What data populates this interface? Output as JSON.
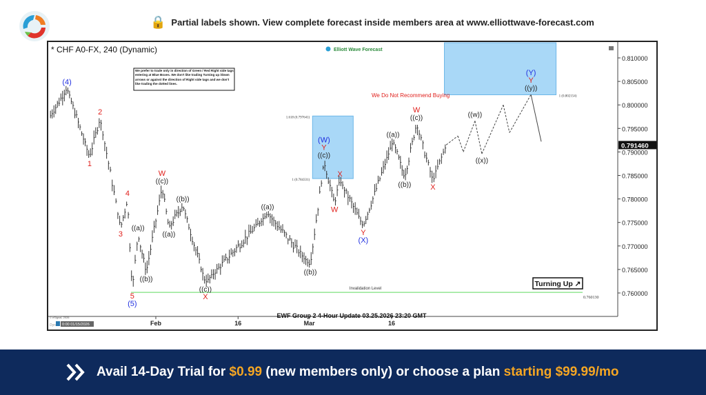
{
  "header": {
    "lock_icon": "lock-icon",
    "notice": "Partial labels shown. View complete forecast inside members area at www.elliottwave-forecast.com"
  },
  "chart_data": {
    "type": "ohlc-bar",
    "title": "* CHF A0-FX, 240 (Dynamic)",
    "brand": "Elliott Wave Forecast",
    "footer": "EWF Group 2 4-Hour Update 03.25.2026 23:20 GMT",
    "copyright": "© eSignal, 2026",
    "cursor_label": "0:00 01/15/2026",
    "dyn_label": "Dyn",
    "note": "We prefer to trade only in direction of Green / Red Right side tags entering at Blue Boxes. We don't like trading Turning up /down arrows or against the direction of Right side tags and we don't like trading the dotted lines.",
    "warning": "We Do Not Recommend Buying",
    "turning_label": "Turning Up ↗",
    "invalidation": {
      "label": "Invalidation Level",
      "price": 0.76013,
      "price_label": "0.760130",
      "color": "#7ee07e"
    },
    "current_price": "0.791460",
    "current_price_value": 0.79146,
    "ylim": [
      0.7545,
      0.8135
    ],
    "y_ticks": [
      "0.810000",
      "0.805000",
      "0.800000",
      "0.795000",
      "0.790000",
      "0.785000",
      "0.780000",
      "0.775000",
      "0.770000",
      "0.765000",
      "0.760000"
    ],
    "x_ticks": [
      {
        "label": "Feb",
        "date": "2026-02-01"
      },
      {
        "label": "16",
        "date": "2026-02-16"
      },
      {
        "label": "Mar",
        "date": "2026-03-01"
      },
      {
        "label": "16",
        "date": "2026-03-16"
      }
    ],
    "blue_boxes": [
      {
        "from": "2026-03-01T14:00Z",
        "to": "2026-03-09T00:00Z",
        "high": 0.797641,
        "low": 0.784331,
        "top_label": "1.618 (0.797641)",
        "bottom_label": "1 (0.784331)"
      },
      {
        "from": "2026-03-25T15:00Z",
        "to": "2026-04-15T00:00Z",
        "high": 0.8135,
        "low": 0.802154,
        "bottom_label": "1 (0.802154)"
      }
    ],
    "colors": {
      "blue": "#1f2fe0",
      "red": "#e0201c",
      "black": "#222222",
      "box": "#a9d8f7",
      "box_border": "#6cb6e8"
    },
    "swings": [
      {
        "t": "2026-01-12T15:00Z",
        "p": 0.7974,
        "labels": []
      },
      {
        "t": "2026-01-15T19:00Z",
        "p": 0.8035,
        "pos": "above",
        "labels": [
          {
            "text": "(4)",
            "color": "blue"
          }
        ]
      },
      {
        "t": "2026-01-19T22:00Z",
        "p": 0.7889,
        "pos": "below",
        "labels": [
          {
            "text": "1",
            "color": "red"
          }
        ]
      },
      {
        "t": "2026-01-21T20:00Z",
        "p": 0.7971,
        "pos": "above",
        "labels": [
          {
            "text": "2",
            "color": "red"
          }
        ]
      },
      {
        "t": "2026-01-25T14:00Z",
        "p": 0.7739,
        "pos": "below",
        "labels": [
          {
            "text": "3",
            "color": "red"
          }
        ]
      },
      {
        "t": "2026-01-26T20:00Z",
        "p": 0.7798,
        "pos": "above",
        "labels": [
          {
            "text": "4",
            "color": "red"
          }
        ]
      },
      {
        "t": "2026-01-27T17:00Z",
        "p": 0.7607,
        "pos": "below",
        "labels": [
          {
            "text": "5",
            "color": "red"
          },
          {
            "text": "(5)",
            "color": "blue"
          }
        ]
      },
      {
        "t": "2026-01-28T18:00Z",
        "p": 0.7725,
        "pos": "above",
        "labels": [
          {
            "text": "((a))",
            "color": "black"
          }
        ]
      },
      {
        "t": "2026-01-30T06:00Z",
        "p": 0.7644,
        "pos": "below",
        "labels": [
          {
            "text": "((b))",
            "color": "black"
          }
        ]
      },
      {
        "t": "2026-02-02T03:00Z",
        "p": 0.7824,
        "pos": "above",
        "labels": [
          {
            "text": "W",
            "color": "red"
          },
          {
            "text": "((c))",
            "color": "black"
          }
        ]
      },
      {
        "t": "2026-02-03T09:00Z",
        "p": 0.7739,
        "pos": "below",
        "labels": [
          {
            "text": "((a))",
            "color": "black"
          }
        ]
      },
      {
        "t": "2026-02-05T22:00Z",
        "p": 0.7786,
        "pos": "above",
        "labels": [
          {
            "text": "((b))",
            "color": "black"
          }
        ]
      },
      {
        "t": "2026-02-10T01:00Z",
        "p": 0.7622,
        "pos": "below",
        "labels": [
          {
            "text": "((c))",
            "color": "black"
          },
          {
            "text": "X",
            "color": "red"
          }
        ]
      },
      {
        "t": "2026-02-21T09:00Z",
        "p": 0.7769,
        "pos": "above",
        "labels": [
          {
            "text": "((a))",
            "color": "black"
          }
        ]
      },
      {
        "t": "2026-03-01T04:00Z",
        "p": 0.7659,
        "pos": "below",
        "labels": [
          {
            "text": "((b))",
            "color": "black"
          }
        ]
      },
      {
        "t": "2026-03-03T16:00Z",
        "p": 0.7879,
        "pos": "above",
        "labels": [
          {
            "text": "(W)",
            "color": "blue"
          },
          {
            "text": "Y",
            "color": "red"
          },
          {
            "text": "((c))",
            "color": "black"
          }
        ]
      },
      {
        "t": "2026-03-05T14:00Z",
        "p": 0.7791,
        "pos": "below",
        "labels": [
          {
            "text": "W",
            "color": "red"
          }
        ]
      },
      {
        "t": "2026-03-06T14:00Z",
        "p": 0.7839,
        "pos": "above",
        "labels": [
          {
            "text": "X",
            "color": "red"
          }
        ]
      },
      {
        "t": "2026-03-10T20:00Z",
        "p": 0.7742,
        "pos": "below",
        "labels": [
          {
            "text": "Y",
            "color": "red"
          },
          {
            "text": "(X)",
            "color": "blue"
          }
        ]
      },
      {
        "t": "2026-03-16T06:00Z",
        "p": 0.7923,
        "pos": "above",
        "labels": [
          {
            "text": "((a))",
            "color": "black"
          }
        ]
      },
      {
        "t": "2026-03-18T09:00Z",
        "p": 0.7845,
        "pos": "below",
        "labels": [
          {
            "text": "((b))",
            "color": "black"
          }
        ]
      },
      {
        "t": "2026-03-20T13:00Z",
        "p": 0.7959,
        "pos": "above",
        "labels": [
          {
            "text": "W",
            "color": "red"
          },
          {
            "text": "((c))",
            "color": "black"
          }
        ]
      },
      {
        "t": "2026-03-23T13:00Z",
        "p": 0.7839,
        "pos": "below",
        "labels": [
          {
            "text": "X",
            "color": "red"
          }
        ]
      },
      {
        "t": "2026-03-25T23:00Z",
        "p": 0.7915,
        "labels": []
      }
    ],
    "projection": [
      {
        "t": "2026-03-25T23:00Z",
        "p": 0.7915,
        "labels": []
      },
      {
        "t": "2026-03-28T02:00Z",
        "p": 0.7934,
        "labels": []
      },
      {
        "t": "2026-03-29T02:00Z",
        "p": 0.79,
        "labels": []
      },
      {
        "t": "2026-03-31T05:00Z",
        "p": 0.7966,
        "pos": "above",
        "labels": [
          {
            "text": "((w))",
            "color": "black"
          }
        ]
      },
      {
        "t": "2026-04-01T11:00Z",
        "p": 0.7896,
        "pos": "below",
        "labels": [
          {
            "text": "((x))",
            "color": "black"
          }
        ]
      },
      {
        "t": "2026-04-05T09:00Z",
        "p": 0.8,
        "labels": []
      },
      {
        "t": "2026-04-06T12:00Z",
        "p": 0.7941,
        "labels": []
      },
      {
        "t": "2026-04-10T10:00Z",
        "p": 0.8022,
        "pos": "above",
        "labels": [
          {
            "text": "(Y)",
            "color": "blue"
          },
          {
            "text": "Y",
            "color": "red"
          },
          {
            "text": "((y))",
            "color": "black"
          }
        ]
      },
      {
        "t": "2026-04-12T07:00Z",
        "p": 0.7922,
        "labels": []
      }
    ]
  },
  "promo": {
    "prefix": "Avail 14-Day Trial for ",
    "price": "$0.99",
    "middle": " (new members only) or choose a plan ",
    "plan": "starting $99.99/mo"
  }
}
